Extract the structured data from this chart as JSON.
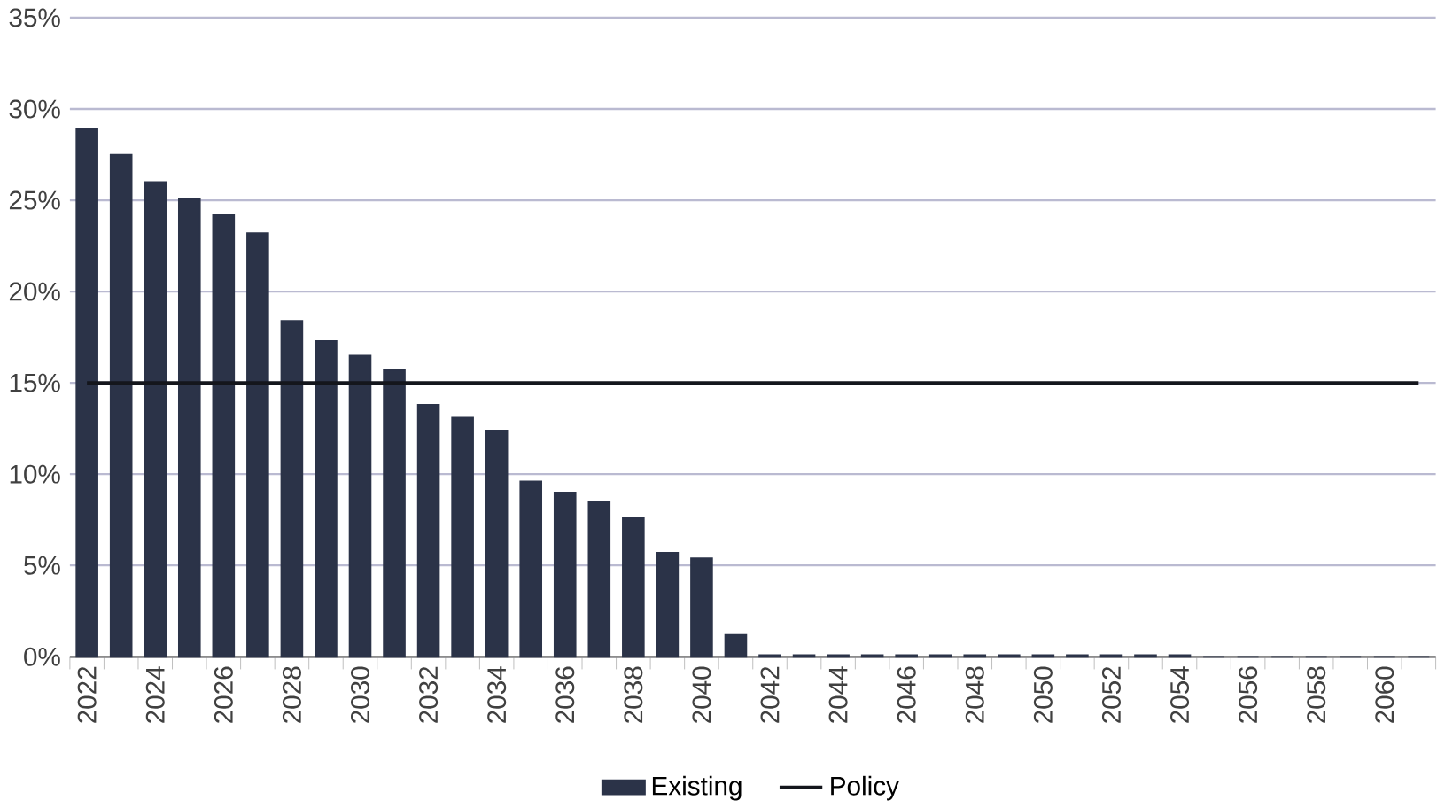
{
  "chart_data": {
    "type": "bar",
    "categories": [
      "2022",
      null,
      "2024",
      null,
      "2026",
      null,
      "2028",
      null,
      "2030",
      null,
      "2032",
      null,
      "2034",
      null,
      "2036",
      null,
      "2038",
      null,
      "2040",
      null,
      "2042",
      null,
      "2044",
      null,
      "2046",
      null,
      "2048",
      null,
      "2050",
      null,
      "2052",
      null,
      "2054",
      null,
      "2056",
      null,
      "2058",
      null,
      "2060",
      null
    ],
    "series": [
      {
        "name": "Existing",
        "type": "bar",
        "color": "#2b3348",
        "values": [
          28.9,
          27.5,
          26.0,
          25.1,
          24.2,
          23.2,
          18.4,
          17.3,
          16.5,
          15.7,
          13.8,
          13.1,
          12.4,
          9.6,
          9.0,
          8.5,
          7.6,
          5.7,
          5.4,
          1.2,
          0.1,
          0.1,
          0.1,
          0.1,
          0.1,
          0.1,
          0.1,
          0.1,
          0.1,
          0.1,
          0.1,
          0.1,
          0.1,
          0,
          0,
          0,
          0,
          0,
          0,
          0
        ]
      },
      {
        "name": "Policy",
        "type": "line",
        "color": "#14161c",
        "values": [
          15,
          15,
          15,
          15,
          15,
          15,
          15,
          15,
          15,
          15,
          15,
          15,
          15,
          15,
          15,
          15,
          15,
          15,
          15,
          15,
          15,
          15,
          15,
          15,
          15,
          15,
          15,
          15,
          15,
          15,
          15,
          15,
          15,
          15,
          15,
          15,
          15,
          15,
          15,
          15
        ]
      }
    ],
    "ylim": [
      0,
      35
    ],
    "yticks": [
      {
        "value": 0,
        "label": "0%"
      },
      {
        "value": 5,
        "label": "5%"
      },
      {
        "value": 10,
        "label": "10%"
      },
      {
        "value": 15,
        "label": "15%"
      },
      {
        "value": 20,
        "label": "20%"
      },
      {
        "value": 25,
        "label": "25%"
      },
      {
        "value": 30,
        "label": "30%"
      },
      {
        "value": 35,
        "label": "35%"
      }
    ],
    "grid": "y",
    "legend": "bottom"
  }
}
